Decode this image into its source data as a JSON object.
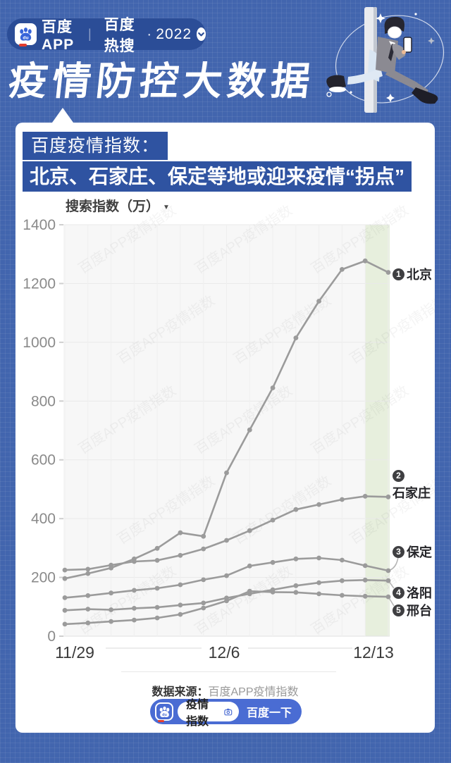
{
  "colors": {
    "page_bg": "#4265ae",
    "pill_bg": "#2b4d97",
    "badge_bg": "#2f53a1",
    "widget_blue": "#4a6cd3",
    "baidu_red": "#e23c2f",
    "line_gray": "#9b9b9b",
    "plot_bg": "#f7f7f7",
    "highlight_green": "#e7efdd"
  },
  "header": {
    "app_name": "百度APP",
    "divider": "|",
    "section": "百度热搜",
    "dot": "·",
    "year": "2022",
    "title": "疫情防控大数据"
  },
  "card": {
    "badge1": "百度疫情指数：",
    "badge2": "北京、石家庄、保定等地或迎来疫情“拐点”"
  },
  "chart_data": {
    "type": "line",
    "title": "搜索指数（万）",
    "ylabel": "搜索指数（万）",
    "ylim": [
      0,
      1400
    ],
    "yticks": [
      0,
      200,
      400,
      600,
      800,
      1000,
      1200,
      1400
    ],
    "x": [
      "11/29",
      "11/30",
      "12/1",
      "12/2",
      "12/3",
      "12/4",
      "12/5",
      "12/6",
      "12/7",
      "12/8",
      "12/9",
      "12/10",
      "12/11",
      "12/12",
      "12/13"
    ],
    "x_tick_labels": [
      "11/29",
      "12/6",
      "12/13"
    ],
    "grid": true,
    "legend_position": "right",
    "line_color": "#9b9b9b",
    "highlight_band": {
      "from_index": 13,
      "to_index": 14,
      "color": "#e7efdd"
    },
    "watermark": "百度APP疫情指数",
    "series": [
      {
        "rank": "1",
        "name": "北京",
        "values": [
          196,
          213,
          232,
          263,
          299,
          352,
          340,
          556,
          702,
          845,
          1015,
          1140,
          1248,
          1277,
          1238
        ]
      },
      {
        "rank": "2",
        "name": "石家庄",
        "values": [
          225,
          228,
          242,
          254,
          258,
          275,
          297,
          326,
          359,
          395,
          431,
          448,
          465,
          476,
          474
        ]
      },
      {
        "rank": "3",
        "name": "保定",
        "values": [
          131,
          138,
          147,
          156,
          163,
          175,
          192,
          206,
          239,
          251,
          263,
          266,
          259,
          240,
          223
        ]
      },
      {
        "rank": "4",
        "name": "洛阳",
        "values": [
          88,
          92,
          90,
          95,
          98,
          106,
          113,
          130,
          144,
          158,
          172,
          182,
          189,
          191,
          189
        ]
      },
      {
        "rank": "5",
        "name": "邢台",
        "values": [
          41,
          45,
          50,
          55,
          62,
          74,
          96,
          120,
          153,
          150,
          149,
          144,
          139,
          136,
          134
        ]
      }
    ]
  },
  "source": {
    "label": "数据来源：",
    "value": "百度APP疫情指数"
  },
  "widget": {
    "query": "疫情指数",
    "button": "百度一下"
  }
}
